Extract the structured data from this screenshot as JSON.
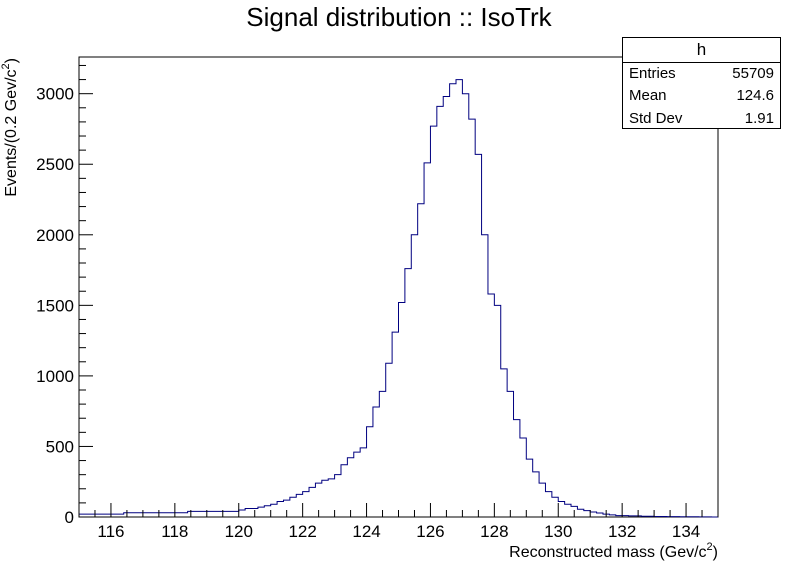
{
  "chart_data": {
    "type": "histogram",
    "title": "Signal distribution :: IsoTrk",
    "xlabel": "Reconstructed mass (Gev/c",
    "xlabel_sup": "2",
    "xlabel_end": ")",
    "ylabel": "Events/(0.2 Gev/c",
    "ylabel_sup": "2",
    "ylabel_end": ")",
    "xlim": [
      115,
      135
    ],
    "ylim": [
      0,
      3260
    ],
    "x_ticks": [
      116,
      118,
      120,
      122,
      124,
      126,
      128,
      130,
      132,
      134
    ],
    "y_ticks": [
      0,
      500,
      1000,
      1500,
      2000,
      2500,
      3000
    ],
    "bin_width": 0.2,
    "bins_start": 115,
    "values": [
      20,
      20,
      20,
      20,
      20,
      20,
      20,
      30,
      30,
      30,
      30,
      30,
      30,
      30,
      30,
      30,
      30,
      40,
      40,
      40,
      40,
      40,
      40,
      40,
      40,
      50,
      60,
      60,
      70,
      80,
      90,
      110,
      120,
      140,
      160,
      180,
      210,
      240,
      260,
      270,
      300,
      370,
      420,
      460,
      490,
      640,
      780,
      890,
      1090,
      1310,
      1520,
      1760,
      2000,
      2220,
      2510,
      2770,
      2910,
      2980,
      3070,
      3100,
      3000,
      2820,
      2570,
      2000,
      1580,
      1500,
      1050,
      890,
      690,
      560,
      410,
      320,
      240,
      180,
      140,
      110,
      90,
      75,
      55,
      45,
      35,
      28,
      20,
      15,
      10,
      10,
      8,
      8,
      5,
      5,
      4,
      4,
      3,
      3,
      2,
      2,
      2,
      1,
      1,
      0
    ],
    "line_color": "#000080",
    "stats_box": {
      "name": "h",
      "rows": [
        {
          "label": "Entries",
          "value": "55709"
        },
        {
          "label": "Mean",
          "value": "124.6"
        },
        {
          "label": "Std Dev",
          "value": "1.91"
        }
      ]
    }
  }
}
